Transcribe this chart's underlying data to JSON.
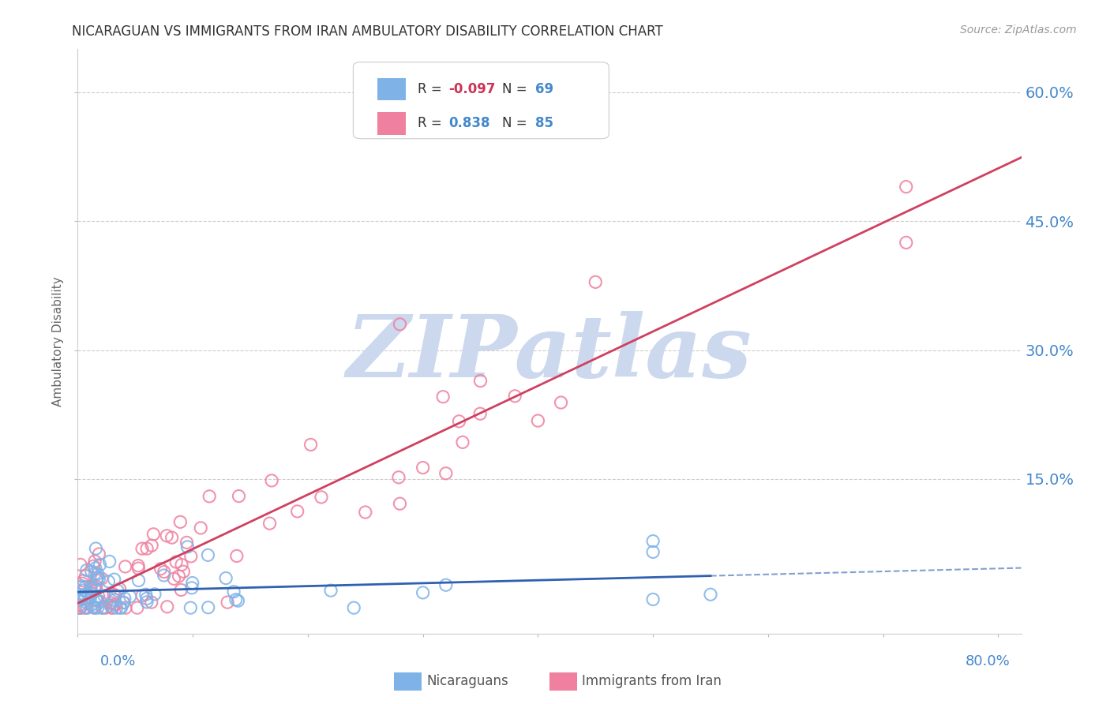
{
  "title": "NICARAGUAN VS IMMIGRANTS FROM IRAN AMBULATORY DISABILITY CORRELATION CHART",
  "source": "Source: ZipAtlas.com",
  "ylabel": "Ambulatory Disability",
  "ytick_labels": [
    "15.0%",
    "30.0%",
    "45.0%",
    "60.0%"
  ],
  "ytick_values": [
    0.15,
    0.3,
    0.45,
    0.6
  ],
  "xlim": [
    0.0,
    0.82
  ],
  "ylim": [
    -0.03,
    0.65
  ],
  "series1_name": "Nicaraguans",
  "series2_name": "Immigrants from Iran",
  "series1_color": "#7fb3e8",
  "series2_color": "#f080a0",
  "series1_line_color": "#3060b0",
  "series2_line_color": "#d04060",
  "watermark": "ZIPatlas",
  "watermark_color": "#ccd8ee",
  "background_color": "#ffffff",
  "grid_color": "#cccccc",
  "title_color": "#333333",
  "right_axis_color": "#4488cc",
  "bottom_axis_color": "#4488cc",
  "legend_r1": "-0.097",
  "legend_n1": "69",
  "legend_r2": "0.838",
  "legend_n2": "85"
}
